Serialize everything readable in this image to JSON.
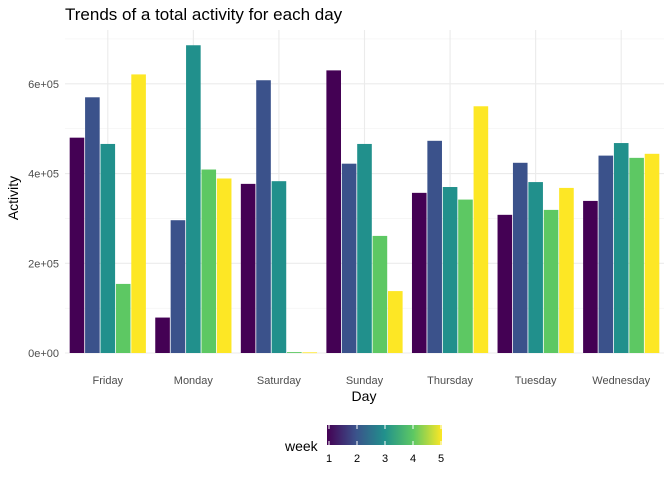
{
  "chart_data": {
    "type": "bar",
    "title": "Trends of a total activity for each day",
    "xlabel": "Day",
    "ylabel": "Activity",
    "categories": [
      "Friday",
      "Monday",
      "Saturday",
      "Sunday",
      "Thursday",
      "Tuesday",
      "Wednesday"
    ],
    "series": [
      {
        "name": "1",
        "color": "#440154",
        "values": [
          480000,
          79000,
          377000,
          630000,
          357000,
          308000,
          339000
        ]
      },
      {
        "name": "2",
        "color": "#3b528b",
        "values": [
          570000,
          296000,
          608000,
          422000,
          473000,
          424000,
          440000
        ]
      },
      {
        "name": "3",
        "color": "#21908c",
        "values": [
          466000,
          686000,
          383000,
          466000,
          370000,
          381000,
          468000
        ]
      },
      {
        "name": "4",
        "color": "#5dc863",
        "values": [
          154000,
          409000,
          2000,
          261000,
          342000,
          319000,
          435000
        ]
      },
      {
        "name": "5",
        "color": "#fde725",
        "values": [
          621000,
          389000,
          1500,
          138000,
          550000,
          368000,
          444000
        ]
      }
    ],
    "ylim": [
      0,
      720000
    ],
    "yticks": [
      0,
      200000,
      400000,
      600000
    ],
    "ytick_labels": [
      "0e+00",
      "2e+05",
      "4e+05",
      "6e+05"
    ],
    "grid": true,
    "legend": {
      "title": "week",
      "placement": "bottom",
      "type": "colorbar",
      "ticks": [
        "1",
        "2",
        "3",
        "4",
        "5"
      ],
      "colors": [
        "#440154",
        "#3b528b",
        "#21908c",
        "#5dc863",
        "#fde725"
      ]
    }
  }
}
